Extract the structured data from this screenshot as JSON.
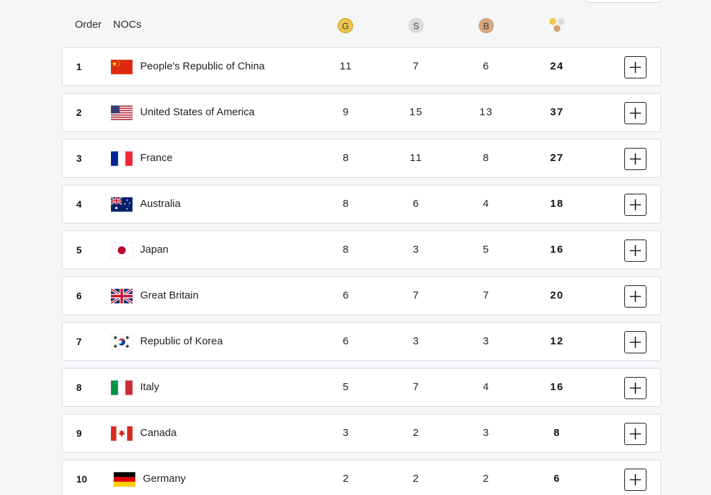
{
  "header": {
    "order_label": "Order",
    "nocs_label": "NOCs",
    "gold_label": "G",
    "silver_label": "S",
    "bronze_label": "B",
    "total_icon": "medals-total-icon"
  },
  "colors": {
    "gold": "#f0c44c",
    "silver": "#dcdcdc",
    "bronze": "#d8a57b",
    "row_border": "#d9dbdf",
    "background": "#f5f6f8"
  },
  "rows": [
    {
      "rank": "1",
      "country": "People's Republic of China",
      "flag": "china-flag",
      "gold": "11",
      "silver": "7",
      "bronze": "6",
      "total": "24"
    },
    {
      "rank": "2",
      "country": "United States of America",
      "flag": "usa-flag",
      "gold": "9",
      "silver": "15",
      "bronze": "13",
      "total": "37"
    },
    {
      "rank": "3",
      "country": "France",
      "flag": "france-flag",
      "gold": "8",
      "silver": "11",
      "bronze": "8",
      "total": "27"
    },
    {
      "rank": "4",
      "country": "Australia",
      "flag": "australia-flag",
      "gold": "8",
      "silver": "6",
      "bronze": "4",
      "total": "18"
    },
    {
      "rank": "5",
      "country": "Japan",
      "flag": "japan-flag",
      "gold": "8",
      "silver": "3",
      "bronze": "5",
      "total": "16"
    },
    {
      "rank": "6",
      "country": "Great Britain",
      "flag": "uk-flag",
      "gold": "6",
      "silver": "7",
      "bronze": "7",
      "total": "20"
    },
    {
      "rank": "7",
      "country": "Republic of Korea",
      "flag": "korea-flag",
      "gold": "6",
      "silver": "3",
      "bronze": "3",
      "total": "12"
    },
    {
      "rank": "8",
      "country": "Italy",
      "flag": "italy-flag",
      "gold": "5",
      "silver": "7",
      "bronze": "4",
      "total": "16"
    },
    {
      "rank": "9",
      "country": "Canada",
      "flag": "canada-flag",
      "gold": "3",
      "silver": "2",
      "bronze": "3",
      "total": "8"
    },
    {
      "rank": "10",
      "country": "Germany",
      "flag": "germany-flag",
      "gold": "2",
      "silver": "2",
      "bronze": "2",
      "total": "6"
    }
  ]
}
